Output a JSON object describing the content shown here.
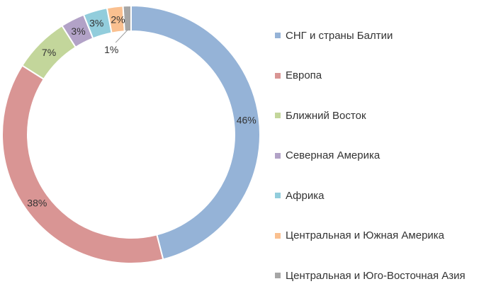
{
  "chart_data": {
    "type": "pie",
    "donut": true,
    "legend_position": "right",
    "series": [
      {
        "name": "СНГ и страны Балтии",
        "value": 46,
        "label": "46%",
        "color": "#95b3d7"
      },
      {
        "name": "Европа",
        "value": 38,
        "label": "38%",
        "color": "#d99594"
      },
      {
        "name": "Ближний Восток",
        "value": 7,
        "label": "7%",
        "color": "#c3d69b"
      },
      {
        "name": "Северная Америка",
        "value": 3,
        "label": "3%",
        "color": "#b2a2c7"
      },
      {
        "name": "Африка",
        "value": 3,
        "label": "3%",
        "color": "#92cddc"
      },
      {
        "name": "Центральная и Южная Америка",
        "value": 2,
        "label": "2%",
        "color": "#fac090"
      },
      {
        "name": "Центральная и Юго-Восточная Азия",
        "value": 1,
        "label": "1%",
        "color": "#a6a6a6"
      }
    ]
  }
}
